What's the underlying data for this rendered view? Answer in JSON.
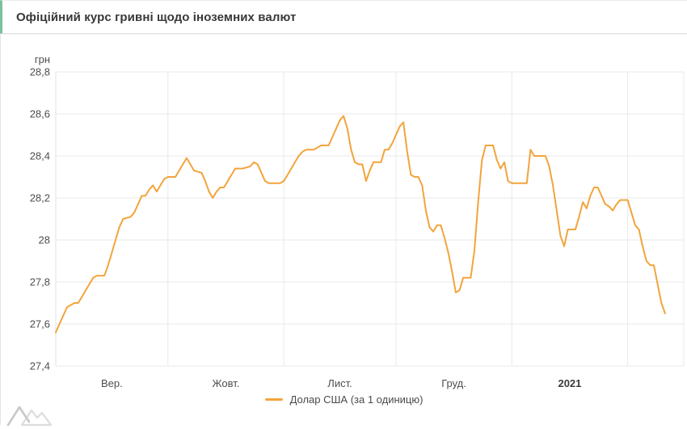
{
  "title": "Офіційний курс гривні щодо іноземних валют",
  "accent_border_color": "#7cc09e",
  "legend": {
    "label": "Долар США (за 1 одиницю)"
  },
  "watermark_icon": "amcharts-mountains-logo",
  "chart_data": {
    "type": "line",
    "title": "Офіційний курс гривні щодо іноземних валют",
    "y_unit": "грн",
    "ylim": [
      27.4,
      28.8
    ],
    "grid": true,
    "legend_position": "bottom",
    "line_color": "#f2a43c",
    "grid_color": "#e9e9e9",
    "tick_color": "#4d4d4d",
    "y_ticks": [
      {
        "label": "28,8",
        "value": 28.8
      },
      {
        "label": "28,6",
        "value": 28.6
      },
      {
        "label": "28,4",
        "value": 28.4
      },
      {
        "label": "28,2",
        "value": 28.2
      },
      {
        "label": "28",
        "value": 28.0
      },
      {
        "label": "27,8",
        "value": 27.8
      },
      {
        "label": "27,6",
        "value": 27.6
      },
      {
        "label": "27,4",
        "value": 27.4
      }
    ],
    "x_axis": {
      "start_date": "2020-09-01",
      "total_days": 168,
      "gridline_dates": [
        "2020-10-01",
        "2020-11-01",
        "2020-12-01",
        "2021-01-01",
        "2021-02-01"
      ],
      "months": [
        {
          "label": "Вер.",
          "start": "2020-09-01",
          "end": "2020-10-01",
          "bold": false
        },
        {
          "label": "Жовт.",
          "start": "2020-10-01",
          "end": "2020-11-01",
          "bold": false
        },
        {
          "label": "Лист.",
          "start": "2020-11-01",
          "end": "2020-12-01",
          "bold": false
        },
        {
          "label": "Груд.",
          "start": "2020-12-01",
          "end": "2021-01-01",
          "bold": false
        },
        {
          "label": "2021",
          "start": "2021-01-01",
          "end": "2021-02-01",
          "bold": true
        }
      ]
    },
    "series": [
      {
        "name": "Долар США (за 1 одиницю)",
        "color": "#f2a43c",
        "points": [
          [
            "2020-09-01",
            27.56
          ],
          [
            "2020-09-02",
            27.6
          ],
          [
            "2020-09-03",
            27.64
          ],
          [
            "2020-09-04",
            27.68
          ],
          [
            "2020-09-05",
            27.69
          ],
          [
            "2020-09-06",
            27.7
          ],
          [
            "2020-09-07",
            27.7
          ],
          [
            "2020-09-08",
            27.73
          ],
          [
            "2020-09-09",
            27.76
          ],
          [
            "2020-09-10",
            27.79
          ],
          [
            "2020-09-11",
            27.82
          ],
          [
            "2020-09-12",
            27.83
          ],
          [
            "2020-09-14",
            27.83
          ],
          [
            "2020-09-15",
            27.88
          ],
          [
            "2020-09-16",
            27.94
          ],
          [
            "2020-09-17",
            28.0
          ],
          [
            "2020-09-18",
            28.06
          ],
          [
            "2020-09-19",
            28.1
          ],
          [
            "2020-09-21",
            28.11
          ],
          [
            "2020-09-22",
            28.13
          ],
          [
            "2020-09-23",
            28.17
          ],
          [
            "2020-09-24",
            28.21
          ],
          [
            "2020-09-25",
            28.21
          ],
          [
            "2020-09-26",
            28.24
          ],
          [
            "2020-09-27",
            28.26
          ],
          [
            "2020-09-28",
            28.23
          ],
          [
            "2020-09-29",
            28.26
          ],
          [
            "2020-09-30",
            28.29
          ],
          [
            "2020-10-01",
            28.3
          ],
          [
            "2020-10-03",
            28.3
          ],
          [
            "2020-10-04",
            28.33
          ],
          [
            "2020-10-05",
            28.36
          ],
          [
            "2020-10-06",
            28.39
          ],
          [
            "2020-10-07",
            28.36
          ],
          [
            "2020-10-08",
            28.33
          ],
          [
            "2020-10-10",
            28.32
          ],
          [
            "2020-10-11",
            28.28
          ],
          [
            "2020-10-12",
            28.23
          ],
          [
            "2020-10-13",
            28.2
          ],
          [
            "2020-10-14",
            28.23
          ],
          [
            "2020-10-15",
            28.25
          ],
          [
            "2020-10-16",
            28.25
          ],
          [
            "2020-10-17",
            28.28
          ],
          [
            "2020-10-18",
            28.31
          ],
          [
            "2020-10-19",
            28.34
          ],
          [
            "2020-10-21",
            28.34
          ],
          [
            "2020-10-23",
            28.35
          ],
          [
            "2020-10-24",
            28.37
          ],
          [
            "2020-10-25",
            28.36
          ],
          [
            "2020-10-26",
            28.32
          ],
          [
            "2020-10-27",
            28.28
          ],
          [
            "2020-10-28",
            28.27
          ],
          [
            "2020-10-31",
            28.27
          ],
          [
            "2020-11-01",
            28.28
          ],
          [
            "2020-11-02",
            28.31
          ],
          [
            "2020-11-03",
            28.34
          ],
          [
            "2020-11-04",
            28.37
          ],
          [
            "2020-11-05",
            28.4
          ],
          [
            "2020-11-06",
            28.42
          ],
          [
            "2020-11-07",
            28.43
          ],
          [
            "2020-11-09",
            28.43
          ],
          [
            "2020-11-10",
            28.44
          ],
          [
            "2020-11-11",
            28.45
          ],
          [
            "2020-11-13",
            28.45
          ],
          [
            "2020-11-14",
            28.49
          ],
          [
            "2020-11-15",
            28.53
          ],
          [
            "2020-11-16",
            28.57
          ],
          [
            "2020-11-17",
            28.59
          ],
          [
            "2020-11-18",
            28.53
          ],
          [
            "2020-11-19",
            28.43
          ],
          [
            "2020-11-20",
            28.37
          ],
          [
            "2020-11-21",
            28.36
          ],
          [
            "2020-11-22",
            28.36
          ],
          [
            "2020-11-23",
            28.28
          ],
          [
            "2020-11-24",
            28.33
          ],
          [
            "2020-11-25",
            28.37
          ],
          [
            "2020-11-27",
            28.37
          ],
          [
            "2020-11-28",
            28.43
          ],
          [
            "2020-11-29",
            28.43
          ],
          [
            "2020-11-30",
            28.46
          ],
          [
            "2020-12-01",
            28.5
          ],
          [
            "2020-12-02",
            28.54
          ],
          [
            "2020-12-03",
            28.56
          ],
          [
            "2020-12-04",
            28.42
          ],
          [
            "2020-12-05",
            28.31
          ],
          [
            "2020-12-06",
            28.3
          ],
          [
            "2020-12-07",
            28.3
          ],
          [
            "2020-12-08",
            28.26
          ],
          [
            "2020-12-09",
            28.14
          ],
          [
            "2020-12-10",
            28.06
          ],
          [
            "2020-12-11",
            28.04
          ],
          [
            "2020-12-12",
            28.07
          ],
          [
            "2020-12-13",
            28.07
          ],
          [
            "2020-12-14",
            28.01
          ],
          [
            "2020-12-15",
            27.94
          ],
          [
            "2020-12-16",
            27.85
          ],
          [
            "2020-12-17",
            27.75
          ],
          [
            "2020-12-18",
            27.76
          ],
          [
            "2020-12-19",
            27.82
          ],
          [
            "2020-12-21",
            27.82
          ],
          [
            "2020-12-22",
            27.95
          ],
          [
            "2020-12-23",
            28.18
          ],
          [
            "2020-12-24",
            28.38
          ],
          [
            "2020-12-25",
            28.45
          ],
          [
            "2020-12-27",
            28.45
          ],
          [
            "2020-12-28",
            28.38
          ],
          [
            "2020-12-29",
            28.34
          ],
          [
            "2020-12-30",
            28.37
          ],
          [
            "2020-12-31",
            28.28
          ],
          [
            "2021-01-01",
            28.27
          ],
          [
            "2021-01-05",
            28.27
          ],
          [
            "2021-01-06",
            28.43
          ],
          [
            "2021-01-07",
            28.4
          ],
          [
            "2021-01-10",
            28.4
          ],
          [
            "2021-01-11",
            28.35
          ],
          [
            "2021-01-12",
            28.26
          ],
          [
            "2021-01-13",
            28.14
          ],
          [
            "2021-01-14",
            28.02
          ],
          [
            "2021-01-15",
            27.97
          ],
          [
            "2021-01-16",
            28.05
          ],
          [
            "2021-01-18",
            28.05
          ],
          [
            "2021-01-19",
            28.11
          ],
          [
            "2021-01-20",
            28.18
          ],
          [
            "2021-01-21",
            28.15
          ],
          [
            "2021-01-22",
            28.21
          ],
          [
            "2021-01-23",
            28.25
          ],
          [
            "2021-01-24",
            28.25
          ],
          [
            "2021-01-25",
            28.21
          ],
          [
            "2021-01-26",
            28.17
          ],
          [
            "2021-01-27",
            28.16
          ],
          [
            "2021-01-28",
            28.14
          ],
          [
            "2021-01-29",
            28.17
          ],
          [
            "2021-01-30",
            28.19
          ],
          [
            "2021-02-01",
            28.19
          ],
          [
            "2021-02-02",
            28.13
          ],
          [
            "2021-02-03",
            28.07
          ],
          [
            "2021-02-04",
            28.05
          ],
          [
            "2021-02-05",
            27.97
          ],
          [
            "2021-02-06",
            27.9
          ],
          [
            "2021-02-07",
            27.88
          ],
          [
            "2021-02-08",
            27.88
          ],
          [
            "2021-02-09",
            27.79
          ],
          [
            "2021-02-10",
            27.7
          ],
          [
            "2021-02-11",
            27.65
          ]
        ]
      }
    ]
  }
}
